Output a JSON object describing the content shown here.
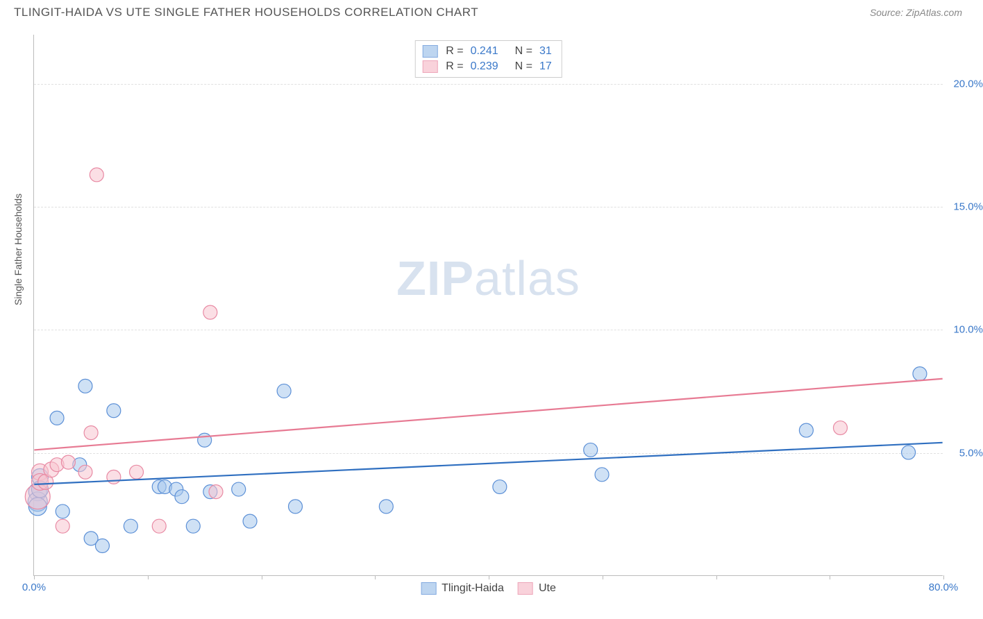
{
  "header": {
    "title": "TLINGIT-HAIDA VS UTE SINGLE FATHER HOUSEHOLDS CORRELATION CHART",
    "source_prefix": "Source: ",
    "source_name": "ZipAtlas.com"
  },
  "watermark": {
    "part1": "ZIP",
    "part2": "atlas"
  },
  "chart": {
    "type": "scatter",
    "y_axis_label": "Single Father Households",
    "xlim": [
      0,
      80
    ],
    "ylim": [
      0,
      22
    ],
    "x_ticks": [
      0,
      10,
      20,
      30,
      40,
      50,
      60,
      70,
      80
    ],
    "x_tick_labels": {
      "0": "0.0%",
      "80": "80.0%"
    },
    "y_gridlines": [
      5,
      10,
      15,
      20
    ],
    "y_tick_labels": {
      "5": "5.0%",
      "10": "10.0%",
      "15": "15.0%",
      "20": "20.0%"
    },
    "grid_color": "#e0e0e0",
    "axis_color": "#bbbbbb",
    "tick_label_color": "#3a78c9",
    "background_color": "#ffffff",
    "label_fontsize": 14
  },
  "series": [
    {
      "name": "Tlingit-Haida",
      "fill_color": "#a8c8ec",
      "stroke_color": "#5b8fd6",
      "fill_opacity": 0.55,
      "marker_radius": 11,
      "line_color": "#2f6fc0",
      "line_width": 2.2,
      "r_value": "0.241",
      "n_value": "31",
      "trend": {
        "y_at_x0": 3.7,
        "y_at_xmax": 5.4
      },
      "points": [
        {
          "x": 0.3,
          "y": 3.4,
          "r": 13
        },
        {
          "x": 0.3,
          "y": 3.0,
          "r": 14
        },
        {
          "x": 0.3,
          "y": 2.8,
          "r": 13
        },
        {
          "x": 0.5,
          "y": 4.0,
          "r": 12
        },
        {
          "x": 0.5,
          "y": 3.5,
          "r": 12
        },
        {
          "x": 2.0,
          "y": 6.4,
          "r": 10
        },
        {
          "x": 2.5,
          "y": 2.6,
          "r": 10
        },
        {
          "x": 4.0,
          "y": 4.5,
          "r": 10
        },
        {
          "x": 4.5,
          "y": 7.7,
          "r": 10
        },
        {
          "x": 5.0,
          "y": 1.5,
          "r": 10
        },
        {
          "x": 6.0,
          "y": 1.2,
          "r": 10
        },
        {
          "x": 7.0,
          "y": 6.7,
          "r": 10
        },
        {
          "x": 8.5,
          "y": 2.0,
          "r": 10
        },
        {
          "x": 11.0,
          "y": 3.6,
          "r": 10
        },
        {
          "x": 11.5,
          "y": 3.6,
          "r": 10
        },
        {
          "x": 12.5,
          "y": 3.5,
          "r": 10
        },
        {
          "x": 13.0,
          "y": 3.2,
          "r": 10
        },
        {
          "x": 14.0,
          "y": 2.0,
          "r": 10
        },
        {
          "x": 15.0,
          "y": 5.5,
          "r": 10
        },
        {
          "x": 15.5,
          "y": 3.4,
          "r": 10
        },
        {
          "x": 18.0,
          "y": 3.5,
          "r": 10
        },
        {
          "x": 19.0,
          "y": 2.2,
          "r": 10
        },
        {
          "x": 22.0,
          "y": 7.5,
          "r": 10
        },
        {
          "x": 23.0,
          "y": 2.8,
          "r": 10
        },
        {
          "x": 31.0,
          "y": 2.8,
          "r": 10
        },
        {
          "x": 41.0,
          "y": 3.6,
          "r": 10
        },
        {
          "x": 49.0,
          "y": 5.1,
          "r": 10
        },
        {
          "x": 50.0,
          "y": 4.1,
          "r": 10
        },
        {
          "x": 68.0,
          "y": 5.9,
          "r": 10
        },
        {
          "x": 77.0,
          "y": 5.0,
          "r": 10
        },
        {
          "x": 78.0,
          "y": 8.2,
          "r": 10
        }
      ]
    },
    {
      "name": "Ute",
      "fill_color": "#f7c4d0",
      "stroke_color": "#e889a3",
      "fill_opacity": 0.55,
      "marker_radius": 11,
      "line_color": "#e77a93",
      "line_width": 2.2,
      "r_value": "0.239",
      "n_value": "17",
      "trend": {
        "y_at_x0": 5.1,
        "y_at_xmax": 8.0
      },
      "points": [
        {
          "x": 0.3,
          "y": 3.2,
          "r": 18
        },
        {
          "x": 0.5,
          "y": 4.2,
          "r": 12
        },
        {
          "x": 0.5,
          "y": 3.8,
          "r": 12
        },
        {
          "x": 1.0,
          "y": 3.8,
          "r": 11
        },
        {
          "x": 1.5,
          "y": 4.3,
          "r": 11
        },
        {
          "x": 2.0,
          "y": 4.5,
          "r": 10
        },
        {
          "x": 2.5,
          "y": 2.0,
          "r": 10
        },
        {
          "x": 3.0,
          "y": 4.6,
          "r": 10
        },
        {
          "x": 4.5,
          "y": 4.2,
          "r": 10
        },
        {
          "x": 5.0,
          "y": 5.8,
          "r": 10
        },
        {
          "x": 5.5,
          "y": 16.3,
          "r": 10
        },
        {
          "x": 7.0,
          "y": 4.0,
          "r": 10
        },
        {
          "x": 9.0,
          "y": 4.2,
          "r": 10
        },
        {
          "x": 11.0,
          "y": 2.0,
          "r": 10
        },
        {
          "x": 15.5,
          "y": 10.7,
          "r": 10
        },
        {
          "x": 16.0,
          "y": 3.4,
          "r": 10
        },
        {
          "x": 71.0,
          "y": 6.0,
          "r": 10
        }
      ]
    }
  ],
  "legend_top": {
    "r_label": "R =",
    "n_label": "N ="
  },
  "legend_bottom": {
    "items": [
      "Tlingit-Haida",
      "Ute"
    ]
  }
}
